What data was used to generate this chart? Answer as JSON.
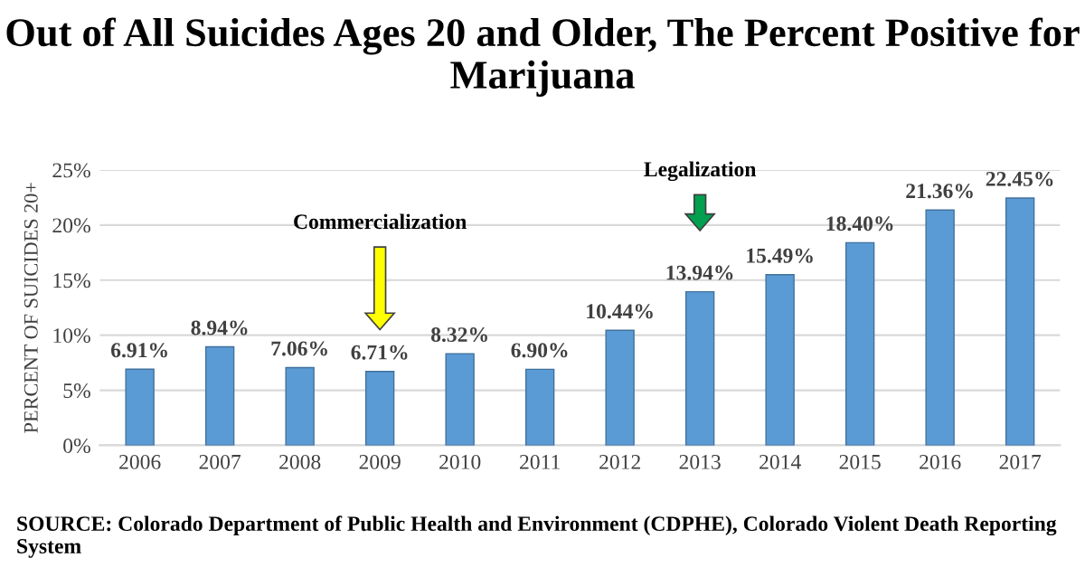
{
  "chart_data": {
    "type": "bar",
    "title": "Out of All Suicides Ages 20 and Older, The Percent Positive for Marijuana",
    "ylabel": "PERCENT OF SUICIDES 20+",
    "categories": [
      "2006",
      "2007",
      "2008",
      "2009",
      "2010",
      "2011",
      "2012",
      "2013",
      "2014",
      "2015",
      "2016",
      "2017"
    ],
    "values": [
      6.91,
      8.94,
      7.06,
      6.71,
      8.32,
      6.9,
      10.44,
      13.94,
      15.49,
      18.4,
      21.36,
      22.45
    ],
    "value_labels": [
      "6.91%",
      "8.94%",
      "7.06%",
      "6.71%",
      "8.32%",
      "6.90%",
      "10.44%",
      "13.94%",
      "15.49%",
      "18.40%",
      "21.36%",
      "22.45%"
    ],
    "color": "#5b9bd5",
    "ylim": [
      0,
      25
    ],
    "yticks": [
      {
        "value": 0,
        "label": "0%"
      },
      {
        "value": 5,
        "label": "5%"
      },
      {
        "value": 10,
        "label": "10%"
      },
      {
        "value": 15,
        "label": "15%"
      },
      {
        "value": 20,
        "label": "20%"
      },
      {
        "value": 25,
        "label": "25%"
      }
    ],
    "grid": "y",
    "annotations": [
      "Commercialization",
      "Legalization",
      "SOURCE: Colorado Department of Public Health and Environment (CDPHE), Colorado Violent Death Reporting System"
    ]
  }
}
